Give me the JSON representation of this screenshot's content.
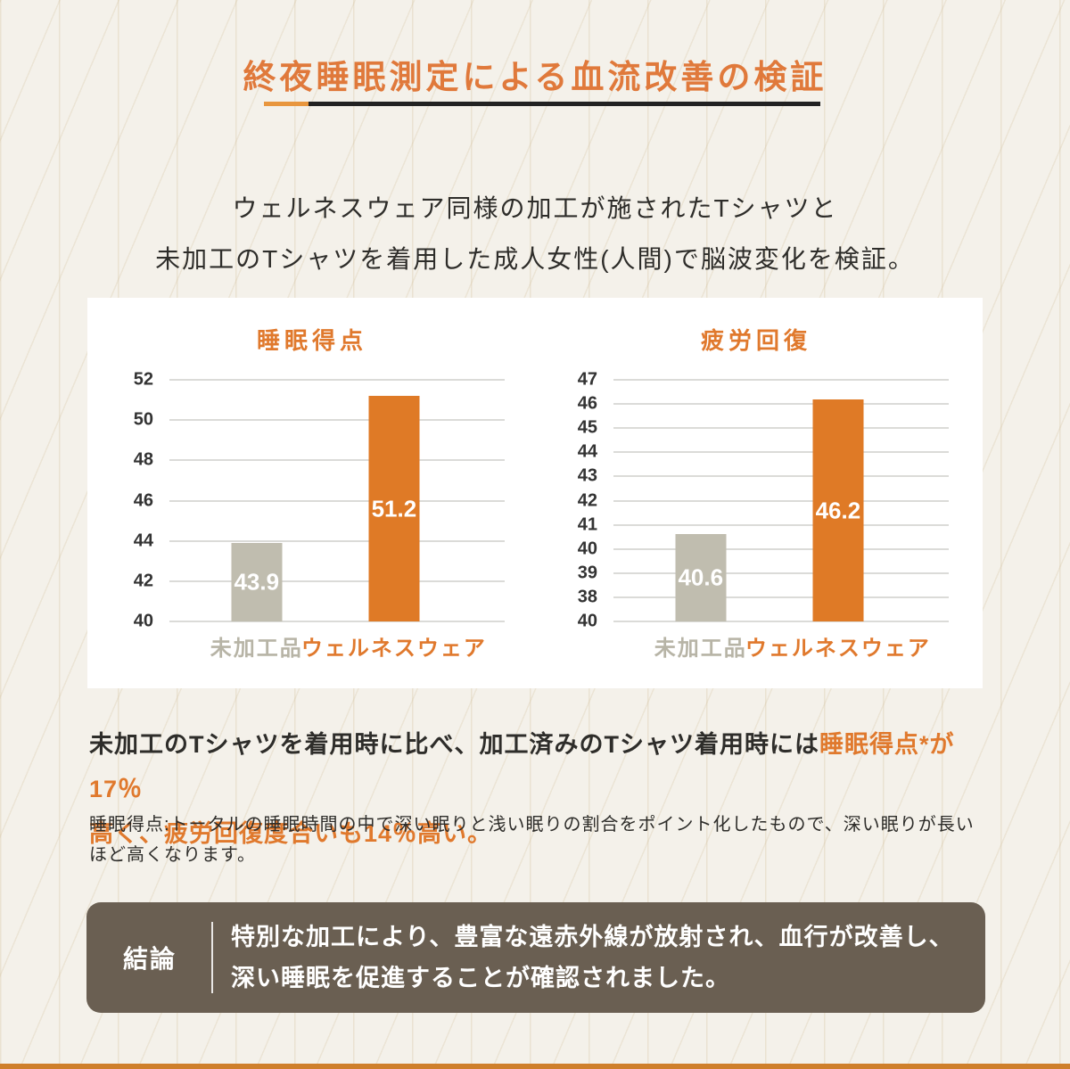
{
  "header": {
    "title": "終夜睡眠測定による血流改善の検証",
    "subtitle_line1": "ウェルネスウェア同様の加工が施されたTシャツと",
    "subtitle_line2": "未加工のTシャツを着用した成人女性(人間)で脳波変化を検証。"
  },
  "chart_data": [
    {
      "type": "bar",
      "title": "睡眠得点",
      "categories": [
        "未加工品",
        "ウェルネスウェア"
      ],
      "values": [
        43.9,
        51.2
      ],
      "value_labels": [
        "43.9",
        "51.2"
      ],
      "yticks": [
        "52",
        "50",
        "48",
        "46",
        "44",
        "42",
        "40"
      ],
      "ylim": [
        40,
        52
      ],
      "bar_colors": [
        "#C0BDAF",
        "#DF7A26"
      ],
      "category_colors": [
        "#B7B4A6",
        "#E0792D"
      ],
      "grid": true,
      "legend": false
    },
    {
      "type": "bar",
      "title": "疲労回復",
      "categories": [
        "未加工品",
        "ウェルネスウェア"
      ],
      "values": [
        40.6,
        46.2
      ],
      "value_labels": [
        "40.6",
        "46.2"
      ],
      "yticks": [
        "47",
        "46",
        "45",
        "44",
        "43",
        "42",
        "41",
        "40",
        "39",
        "38",
        "40"
      ],
      "ylim": [
        37,
        47
      ],
      "bar_colors": [
        "#C0BDAF",
        "#DF7A26"
      ],
      "category_colors": [
        "#B7B4A6",
        "#E0792D"
      ],
      "grid": true,
      "legend": false
    }
  ],
  "statement": {
    "dark_text": "未加工のTシャツを着用時に比べ、加工済みのTシャツ着用時には",
    "orange_line1": "睡眠得点*が17％",
    "orange_line2": "高く、疲労回復度合いも14％高い。"
  },
  "footnote": {
    "line1": "睡眠得点:トータルの睡眠時間の中で深い眠りと浅い眠りの割合をポイント化したもので、深い眠りが長い",
    "line2": "ほど高くなります。"
  },
  "conclusion": {
    "label": "結論",
    "line1": "特別な加工により、豊富な遠赤外線が放射され、血行が改善し、",
    "line2": "深い睡眠を促進することが確認されました。"
  },
  "colors": {
    "background": "#F4F1EA",
    "accent_orange": "#E0792D",
    "bar_orange": "#DF7A26",
    "bar_gray": "#C0BDAF",
    "dark_text": "#2E2D2A",
    "conclusion_bg": "#6A5F52",
    "underline_dark": "#222222",
    "underline_orange": "#E8963E",
    "bottom_border": "#CF7F2B",
    "gridline": "#DBDBD8"
  }
}
